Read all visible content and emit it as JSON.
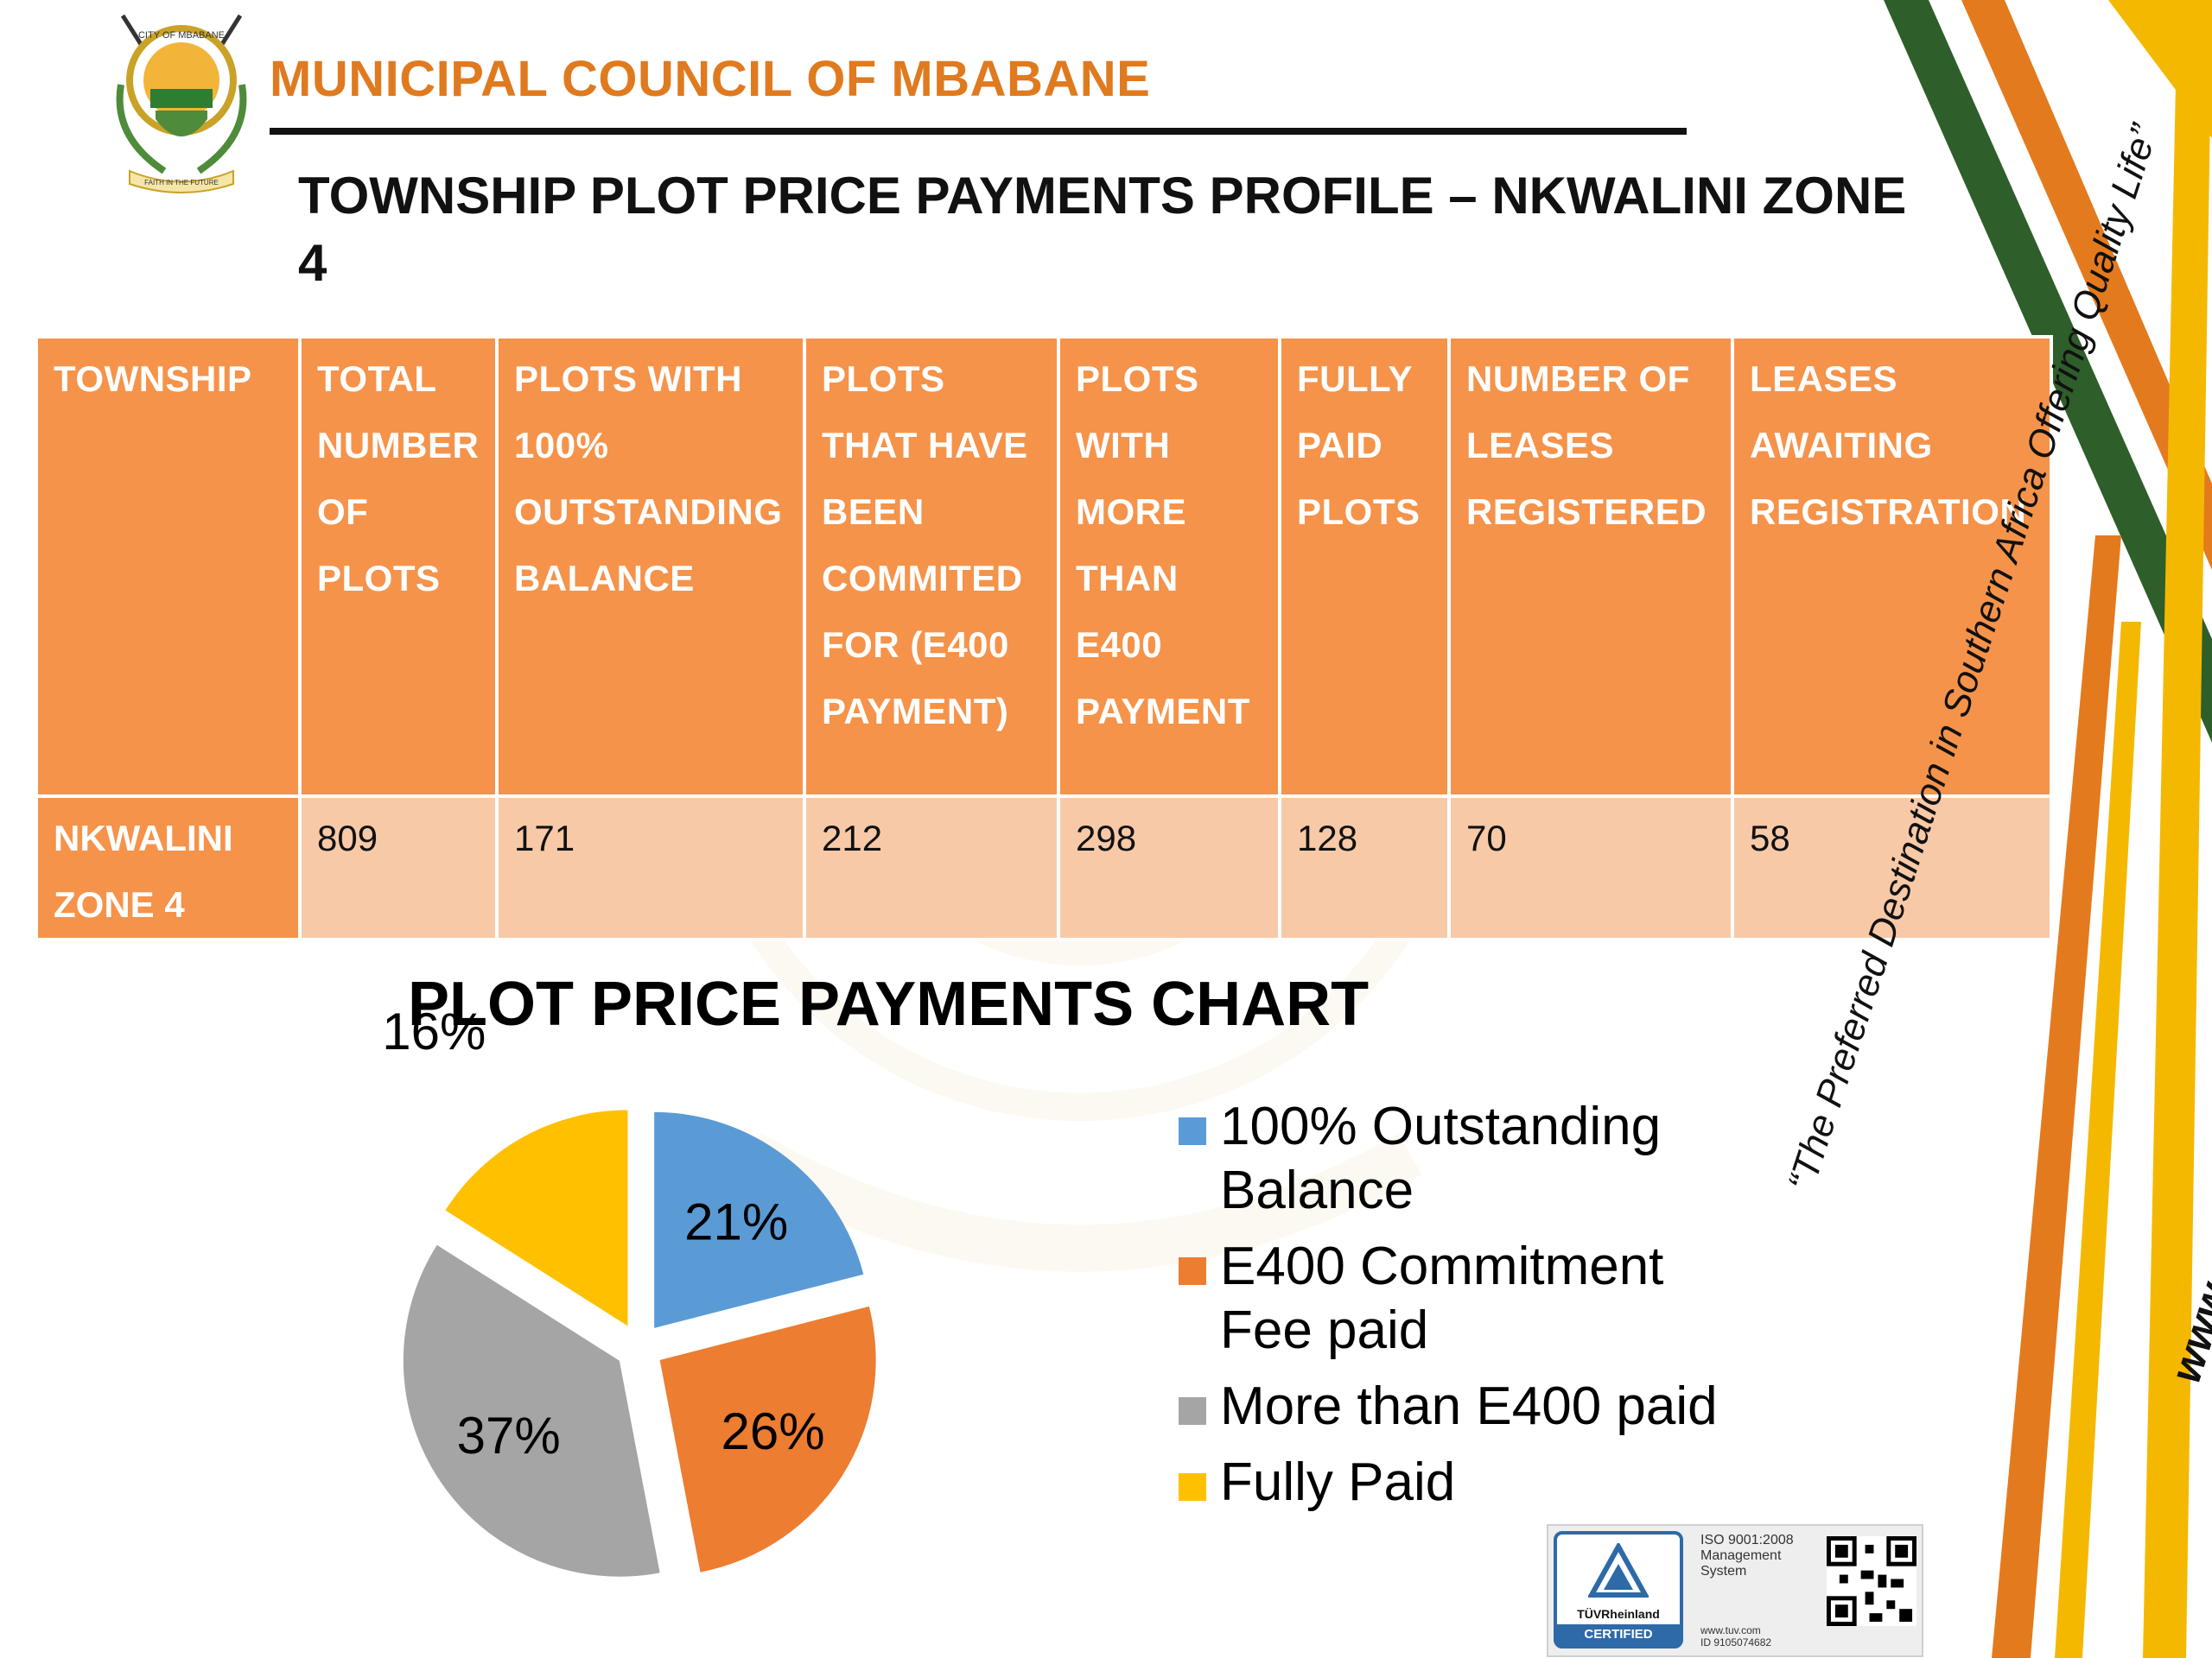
{
  "header": {
    "council_name": "MUNICIPAL COUNCIL OF MBABANE",
    "slide_title": "TOWNSHIP PLOT PRICE PAYMENTS PROFILE – NKWALINI ZONE 4"
  },
  "logo": {
    "top_text": "CITY OF MBABANE",
    "motto": "FAITH IN THE FUTURE"
  },
  "table": {
    "headers": [
      "TOWNSHIP",
      "TOTAL NUMBER OF PLOTS",
      "PLOTS WITH 100% OUTSTANDING BALANCE",
      "PLOTS THAT HAVE BEEN COMMITED FOR (E400 PAYMENT)",
      "PLOTS WITH MORE THAN E400 PAYMENT",
      "FULLY PAID PLOTS",
      "NUMBER OF LEASES REGISTERED",
      "LEASES AWAITING REGISTRATION"
    ],
    "rows": [
      [
        "NKWALINI ZONE 4",
        "809",
        "171",
        "212",
        "298",
        "128",
        "70",
        "58"
      ]
    ]
  },
  "chart_data": {
    "type": "pie",
    "title": "PLOT PRICE PAYMENTS CHART",
    "categories": [
      "100% Outstanding Balance",
      "E400 Commitment Fee paid",
      "More than E400 paid",
      "Fully Paid"
    ],
    "values": [
      21,
      26,
      37,
      16
    ],
    "labels": [
      "21%",
      "26%",
      "37%",
      "16%"
    ],
    "colors": [
      "#5B9BD5",
      "#ED7D31",
      "#A5A5A5",
      "#FFC000"
    ],
    "legend_position": "right",
    "exploded": true
  },
  "side": {
    "tagline": "“The Preferred Destination in Southern Africa Offering Quality Life”",
    "url": "www.mbabane.org.sz"
  },
  "certification": {
    "brand": "TÜVRheinland",
    "label": "CERTIFIED",
    "standard": "ISO 9001:2008",
    "system": "Management System",
    "web": "www.tuv.com",
    "id": "ID 9105074682"
  },
  "colors": {
    "accent_orange": "#E07A1F",
    "table_header": "#F5934A",
    "table_cell": "#F8C9A7",
    "stripe_green": "#2E5E2A",
    "stripe_orange": "#E47A1E",
    "stripe_yellow": "#F5B800"
  }
}
